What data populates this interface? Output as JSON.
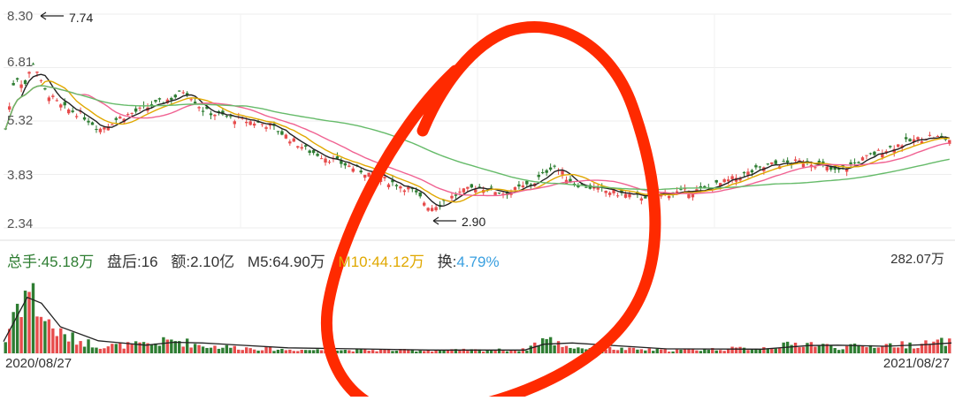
{
  "chart_data": {
    "type": "candlestick",
    "price_axis": {
      "ticks": [
        "8.30",
        "6.81",
        "5.32",
        "3.83",
        "2.34"
      ],
      "ylim": [
        2.34,
        8.3
      ]
    },
    "annotations": {
      "high": "7.74",
      "low": "2.90"
    },
    "x_range": {
      "start": "2020/08/27",
      "end": "2021/08/27"
    },
    "volume_max_label": "282.07万",
    "price_series": [
      {
        "x": 0,
        "v": 5.1
      },
      {
        "x": 0.01,
        "v": 6.6
      },
      {
        "x": 0.02,
        "v": 6.3
      },
      {
        "x": 0.03,
        "v": 7.0
      },
      {
        "x": 0.04,
        "v": 6.2
      },
      {
        "x": 0.06,
        "v": 5.7
      },
      {
        "x": 0.08,
        "v": 5.5
      },
      {
        "x": 0.1,
        "v": 5.1
      },
      {
        "x": 0.12,
        "v": 5.4
      },
      {
        "x": 0.15,
        "v": 5.7
      },
      {
        "x": 0.18,
        "v": 6.0
      },
      {
        "x": 0.19,
        "v": 6.2
      },
      {
        "x": 0.21,
        "v": 5.6
      },
      {
        "x": 0.24,
        "v": 5.4
      },
      {
        "x": 0.28,
        "v": 5.2
      },
      {
        "x": 0.32,
        "v": 4.5
      },
      {
        "x": 0.36,
        "v": 4.1
      },
      {
        "x": 0.4,
        "v": 3.7
      },
      {
        "x": 0.43,
        "v": 3.4
      },
      {
        "x": 0.45,
        "v": 2.9
      },
      {
        "x": 0.48,
        "v": 3.3
      },
      {
        "x": 0.5,
        "v": 3.5
      },
      {
        "x": 0.53,
        "v": 3.3
      },
      {
        "x": 0.56,
        "v": 3.6
      },
      {
        "x": 0.58,
        "v": 4.1
      },
      {
        "x": 0.6,
        "v": 3.6
      },
      {
        "x": 0.63,
        "v": 3.4
      },
      {
        "x": 0.67,
        "v": 3.2
      },
      {
        "x": 0.7,
        "v": 3.3
      },
      {
        "x": 0.74,
        "v": 3.4
      },
      {
        "x": 0.78,
        "v": 3.8
      },
      {
        "x": 0.81,
        "v": 4.1
      },
      {
        "x": 0.85,
        "v": 4.2
      },
      {
        "x": 0.88,
        "v": 3.9
      },
      {
        "x": 0.92,
        "v": 4.4
      },
      {
        "x": 0.95,
        "v": 4.7
      },
      {
        "x": 0.98,
        "v": 4.9
      },
      {
        "x": 1.0,
        "v": 4.8
      }
    ],
    "volume_series": [
      {
        "x": 0,
        "v": 40
      },
      {
        "x": 0.01,
        "v": 160
      },
      {
        "x": 0.025,
        "v": 220
      },
      {
        "x": 0.04,
        "v": 120
      },
      {
        "x": 0.06,
        "v": 60
      },
      {
        "x": 0.1,
        "v": 25
      },
      {
        "x": 0.15,
        "v": 30
      },
      {
        "x": 0.18,
        "v": 45
      },
      {
        "x": 0.21,
        "v": 25
      },
      {
        "x": 0.3,
        "v": 12
      },
      {
        "x": 0.45,
        "v": 10
      },
      {
        "x": 0.55,
        "v": 12
      },
      {
        "x": 0.57,
        "v": 50
      },
      {
        "x": 0.6,
        "v": 20
      },
      {
        "x": 0.7,
        "v": 10
      },
      {
        "x": 0.8,
        "v": 18
      },
      {
        "x": 0.85,
        "v": 35
      },
      {
        "x": 0.88,
        "v": 20
      },
      {
        "x": 0.93,
        "v": 28
      },
      {
        "x": 0.97,
        "v": 30
      },
      {
        "x": 1.0,
        "v": 40
      }
    ]
  },
  "info": {
    "total": "总手:45.18万",
    "after": "盘后:16",
    "amount": "额:2.10亿",
    "m5": "M5:64.90万",
    "m10": "M10:44.12万",
    "turnover_label": "换:",
    "turnover_value": "4.79%"
  },
  "colors": {
    "up": "#e74c4c",
    "down": "#2e7d32",
    "m5": "#222222",
    "m10": "#e0a800",
    "m20": "#f06292",
    "m60": "#66bb6a",
    "turnover": "#3aa0e0",
    "annotation": "#ff2a00"
  }
}
